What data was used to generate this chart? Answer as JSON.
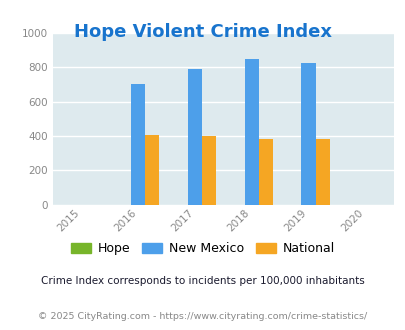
{
  "title": "Hope Violent Crime Index",
  "title_color": "#1874CD",
  "title_fontsize": 13,
  "years": [
    2015,
    2016,
    2017,
    2018,
    2019,
    2020
  ],
  "bar_years": [
    2016,
    2017,
    2018,
    2019
  ],
  "hope_values": [
    0,
    0,
    0,
    0
  ],
  "nm_values": [
    700,
    790,
    850,
    825
  ],
  "national_values": [
    405,
    400,
    385,
    385
  ],
  "hope_color": "#77b52a",
  "nm_color": "#4d9fea",
  "national_color": "#f5a623",
  "bar_width": 0.25,
  "ylim": [
    0,
    1000
  ],
  "yticks": [
    0,
    200,
    400,
    600,
    800,
    1000
  ],
  "xlim": [
    2014.5,
    2020.5
  ],
  "bg_color": "#deeaee",
  "grid_color": "#ffffff",
  "legend_labels": [
    "Hope",
    "New Mexico",
    "National"
  ],
  "footnote1": "Crime Index corresponds to incidents per 100,000 inhabitants",
  "footnote2": "© 2025 CityRating.com - https://www.cityrating.com/crime-statistics/",
  "footnote1_color": "#1a1a2e",
  "footnote2_color": "#888888",
  "tick_color": "#888888"
}
